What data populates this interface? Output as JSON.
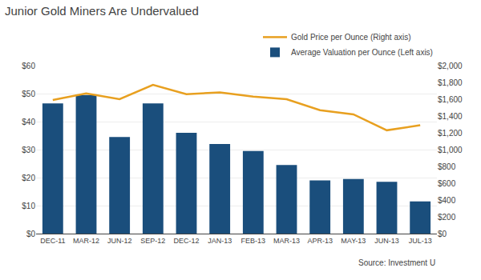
{
  "chart_data": {
    "type": "bar",
    "title": "Junior Gold Miners Are Undervalued",
    "categories": [
      "DEC-11",
      "MAR-12",
      "JUN-12",
      "SEP-12",
      "DEC-12",
      "JAN-13",
      "FEB-13",
      "MAR-13",
      "APR-13",
      "MAY-13",
      "JUN-13",
      "JUL-13"
    ],
    "series": [
      {
        "name": "Average Valuation per Ounce (Left axis)",
        "type": "bar",
        "color": "#1a4e7c",
        "values": [
          46.5,
          49.5,
          34.5,
          46.5,
          36.0,
          32.0,
          29.5,
          24.5,
          19.0,
          19.5,
          18.5,
          11.5
        ]
      },
      {
        "name": "Gold Price per Ounce (Right axis)",
        "type": "line",
        "color": "#e8a020",
        "axis": "y2",
        "values": [
          1590,
          1670,
          1600,
          1770,
          1660,
          1680,
          1630,
          1600,
          1470,
          1420,
          1230,
          1290
        ]
      }
    ],
    "ylim": [
      0,
      60
    ],
    "yticks": [
      {
        "value": 0,
        "label": "$0"
      },
      {
        "value": 10,
        "label": "$10"
      },
      {
        "value": 20,
        "label": "$20"
      },
      {
        "value": 30,
        "label": "$30"
      },
      {
        "value": 40,
        "label": "$40"
      },
      {
        "value": 50,
        "label": "$50"
      },
      {
        "value": 60,
        "label": "$60"
      }
    ],
    "y2lim": [
      0,
      2000
    ],
    "y2ticks": [
      {
        "value": 0,
        "label": "$0"
      },
      {
        "value": 200,
        "label": "$200"
      },
      {
        "value": 400,
        "label": "$400"
      },
      {
        "value": 600,
        "label": "$600"
      },
      {
        "value": 800,
        "label": "$800"
      },
      {
        "value": 1000,
        "label": "$1,000"
      },
      {
        "value": 1200,
        "label": "$1,200"
      },
      {
        "value": 1400,
        "label": "$1,400"
      },
      {
        "value": 1600,
        "label": "$1,600"
      },
      {
        "value": 1800,
        "label": "$1,800"
      },
      {
        "value": 2000,
        "label": "$2,000"
      }
    ],
    "grid": true,
    "legend": "upper right",
    "annotations": [
      "Source: Investment U"
    ]
  }
}
